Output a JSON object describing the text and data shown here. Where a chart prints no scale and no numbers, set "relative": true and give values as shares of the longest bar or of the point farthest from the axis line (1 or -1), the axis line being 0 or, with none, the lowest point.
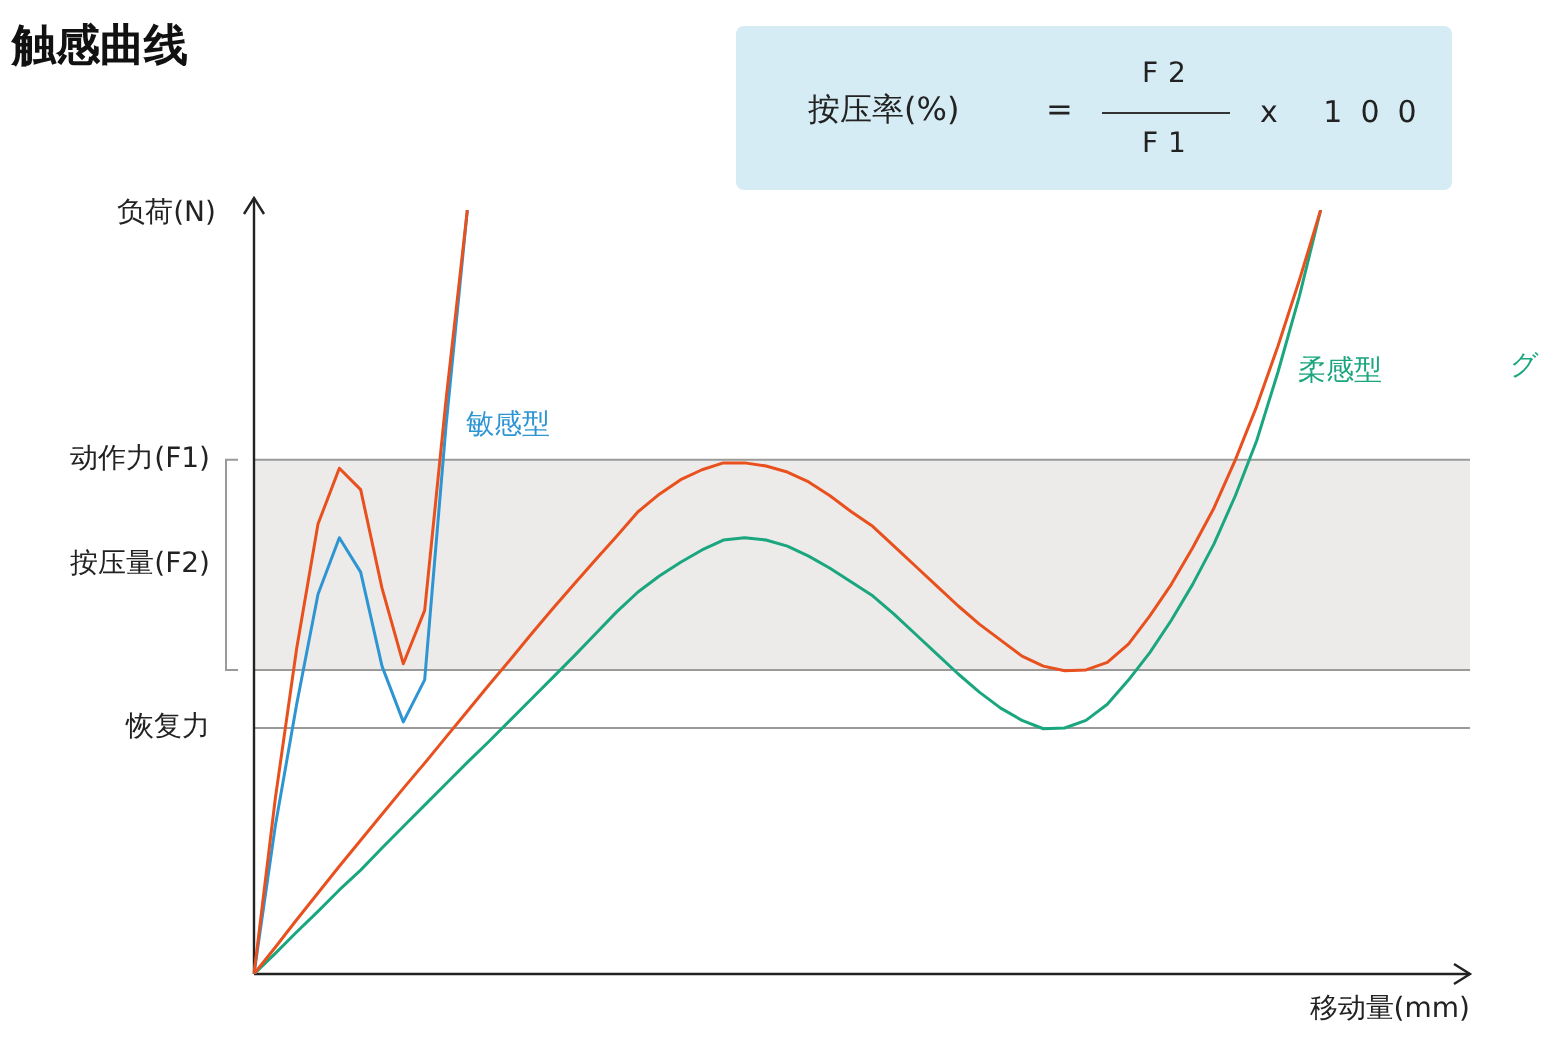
{
  "chart_data": {
    "type": "line",
    "title": "触感曲线",
    "xlabel": "移动量(mm)",
    "ylabel": "负荷(N)",
    "relative": true,
    "tick_labels": false,
    "grid": false,
    "legend": false,
    "marker": "none",
    "line_style": "solid",
    "annotations": [
      "按压率(%)",
      "=",
      "F2",
      "F1",
      "x 100",
      "グ"
    ],
    "categories": [
      null,
      null,
      null,
      null,
      null,
      null,
      null,
      null,
      null,
      null,
      null,
      null,
      null,
      null,
      null,
      null,
      null,
      null,
      null,
      null,
      null,
      null,
      null,
      null,
      null,
      null,
      null,
      null,
      null,
      null,
      null,
      null,
      null,
      null,
      null,
      null,
      null,
      null,
      null,
      null,
      null,
      null,
      null,
      null,
      null,
      null,
      null,
      null,
      null,
      null,
      null,
      null,
      null,
      null,
      null,
      null,
      null,
      null
    ],
    "ref_lines": [
      {
        "axis": "y",
        "value": 0.673,
        "label": "动作力(F1)",
        "color": "#9a9a9a"
      },
      {
        "axis": "y",
        "value": 0.398,
        "color": "#9a9a9a"
      },
      {
        "axis": "y",
        "value": 0.322,
        "label": "恢复力",
        "color": "#9a9a9a"
      }
    ],
    "bands": [
      {
        "axis": "y",
        "from": 0.398,
        "to": 0.673,
        "label": "按压量(F2)",
        "color": "#ecebe9"
      }
    ],
    "series": [
      {
        "color": "#e8501e",
        "values": [
          0,
          0.23,
          0.426,
          0.589,
          0.662,
          0.634,
          0.505,
          0.406,
          0.476,
          0.751,
          1,
          null,
          null,
          null,
          null,
          null,
          null,
          null,
          null,
          null,
          null,
          null,
          null,
          null,
          null,
          null,
          null,
          null,
          null,
          null,
          null,
          null,
          null,
          null,
          null,
          null,
          null,
          null,
          null,
          null,
          null,
          null,
          null,
          null,
          null,
          null,
          null,
          null,
          null,
          null,
          null,
          null,
          null,
          null,
          null,
          null,
          null,
          null
        ]
      },
      {
        "name": "敏感型",
        "color": "#2e95d3",
        "values": [
          0,
          0.194,
          0.353,
          0.497,
          0.571,
          0.526,
          0.403,
          0.33,
          0.385,
          0.717,
          1,
          null,
          null,
          null,
          null,
          null,
          null,
          null,
          null,
          null,
          null,
          null,
          null,
          null,
          null,
          null,
          null,
          null,
          null,
          null,
          null,
          null,
          null,
          null,
          null,
          null,
          null,
          null,
          null,
          null,
          null,
          null,
          null,
          null,
          null,
          null,
          null,
          null,
          null,
          null,
          null,
          null,
          null,
          null,
          null,
          null,
          null,
          null
        ]
      },
      {
        "color": "#e8501e",
        "values": [
          0,
          0.035,
          0.071,
          0.106,
          0.141,
          0.175,
          0.209,
          0.243,
          0.276,
          0.31,
          0.344,
          0.378,
          0.411,
          0.445,
          0.478,
          0.51,
          0.542,
          0.573,
          0.605,
          0.628,
          0.647,
          0.66,
          0.669,
          0.669,
          0.665,
          0.657,
          0.644,
          0.626,
          0.605,
          0.586,
          0.56,
          0.534,
          0.508,
          0.482,
          0.458,
          0.437,
          0.416,
          0.403,
          0.397,
          0.398,
          0.408,
          0.432,
          0.469,
          0.51,
          0.558,
          0.61,
          0.673,
          0.743,
          0.822,
          0.908,
          1,
          null,
          null,
          null,
          null,
          null,
          null,
          null
        ]
      },
      {
        "name": "柔感型",
        "color": "#1aa67e",
        "values": [
          0,
          0.027,
          0.055,
          0.082,
          0.11,
          0.136,
          0.165,
          0.193,
          0.221,
          0.249,
          0.277,
          0.304,
          0.332,
          0.36,
          0.388,
          0.416,
          0.445,
          0.474,
          0.5,
          0.521,
          0.539,
          0.555,
          0.568,
          0.571,
          0.568,
          0.56,
          0.547,
          0.531,
          0.513,
          0.495,
          0.471,
          0.445,
          0.419,
          0.393,
          0.369,
          0.348,
          0.332,
          0.321,
          0.322,
          0.332,
          0.353,
          0.385,
          0.421,
          0.463,
          0.51,
          0.563,
          0.626,
          0.698,
          0.788,
          0.887,
          1,
          null,
          null,
          null,
          null,
          null,
          null,
          null
        ]
      }
    ]
  }
}
